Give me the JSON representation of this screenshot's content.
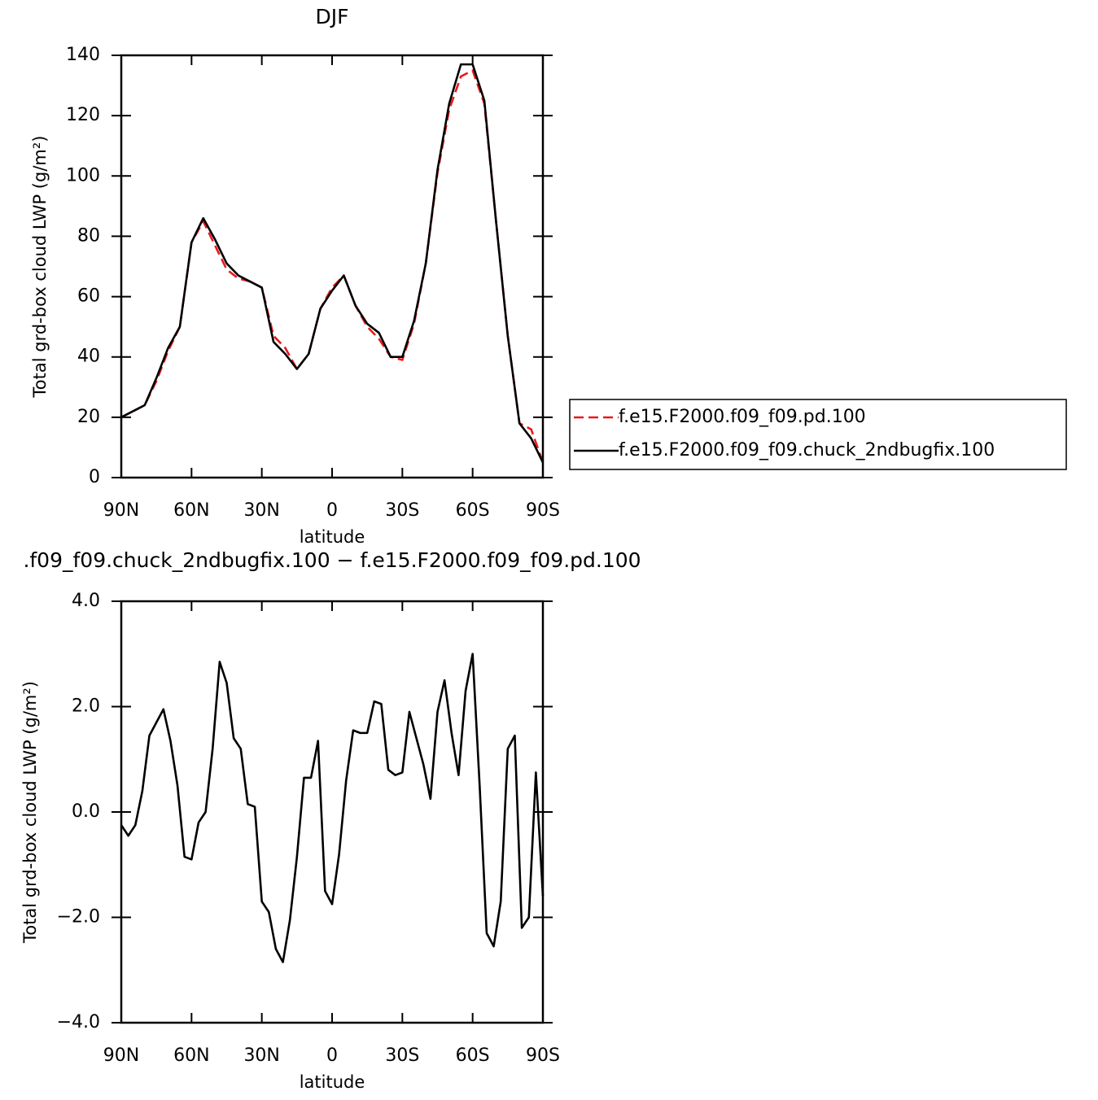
{
  "chart_data": [
    {
      "type": "line",
      "title": "DJF",
      "xlabel": "latitude",
      "ylabel": "Total grd-box cloud LWP (g/m²)",
      "x": [
        90,
        85,
        80,
        75,
        70,
        65,
        60,
        55,
        50,
        45,
        40,
        35,
        30,
        25,
        20,
        15,
        10,
        5,
        0,
        -5,
        -10,
        -15,
        -20,
        -25,
        -30,
        -35,
        -40,
        -45,
        -50,
        -55,
        -60,
        -65,
        -70,
        -75,
        -80,
        -85,
        -90
      ],
      "xlim": [
        90,
        -90
      ],
      "xticks": [
        {
          "value": 90,
          "label": "90N"
        },
        {
          "value": 60,
          "label": "60N"
        },
        {
          "value": 30,
          "label": "30N"
        },
        0,
        {
          "value": -30,
          "label": "30S"
        },
        {
          "value": -60,
          "label": "60S"
        },
        {
          "value": -90,
          "label": "90S"
        }
      ],
      "ylim": [
        0,
        140
      ],
      "yticks": [
        0,
        20,
        40,
        60,
        80,
        100,
        120,
        140
      ],
      "legend": "right",
      "series": [
        {
          "name": "f.e15.F2000.f09_f09.pd.100",
          "color": "#e8191c",
          "linestyle": "dashed",
          "values": [
            20,
            22,
            24,
            32,
            42,
            50,
            78,
            85,
            77,
            69,
            66,
            65,
            63,
            47,
            43,
            36,
            41,
            56,
            63,
            67,
            57,
            50,
            46,
            40,
            39,
            51,
            71,
            101,
            122,
            133,
            135,
            124,
            85,
            47,
            18,
            16,
            5
          ]
        },
        {
          "name": "f.e15.F2000.f09_f09.chuck_2ndbugfix.100",
          "color": "#000000",
          "linestyle": "solid",
          "values": [
            20,
            22,
            24,
            33,
            43,
            50,
            78,
            86,
            79,
            71,
            67,
            65,
            63,
            45,
            41,
            36,
            41,
            56,
            62,
            67,
            57,
            51,
            48,
            40,
            40,
            52,
            71,
            102,
            124,
            137,
            137,
            125,
            85,
            47,
            18,
            13,
            5
          ]
        }
      ]
    },
    {
      "type": "line",
      "title": ".f09_f09.chuck_2ndbugfix.100 − f.e15.F2000.f09_f09.pd.100",
      "xlabel": "latitude",
      "ylabel": "Total grd-box cloud LWP (g/m²)",
      "x": [
        90,
        87,
        84,
        81,
        78,
        75,
        72,
        69,
        66,
        63,
        60,
        57,
        54,
        51,
        48,
        45,
        42,
        39,
        36,
        33,
        30,
        27,
        24,
        21,
        18,
        15,
        12,
        9,
        6,
        3,
        0,
        -3,
        -6,
        -9,
        -12,
        -15,
        -18,
        -21,
        -24,
        -27,
        -30,
        -33,
        -36,
        -39,
        -42,
        -45,
        -48,
        -51,
        -54,
        -57,
        -60,
        -63,
        -66,
        -69,
        -72,
        -75,
        -78,
        -81,
        -84,
        -87,
        -90
      ],
      "xlim": [
        90,
        -90
      ],
      "xticks": [
        {
          "value": 90,
          "label": "90N"
        },
        {
          "value": 60,
          "label": "60N"
        },
        {
          "value": 30,
          "label": "30N"
        },
        0,
        {
          "value": -30,
          "label": "30S"
        },
        {
          "value": -60,
          "label": "60S"
        },
        {
          "value": -90,
          "label": "90S"
        }
      ],
      "ylim": [
        -4,
        4
      ],
      "yticks": [
        {
          "value": -4,
          "label": "−4.0"
        },
        {
          "value": -2,
          "label": "−2.0"
        },
        {
          "value": 0,
          "label": "0.0"
        },
        {
          "value": 2,
          "label": "2.0"
        },
        {
          "value": 4,
          "label": "4.0"
        }
      ],
      "series": [
        {
          "color": "#000000",
          "linestyle": "solid",
          "values": [
            -0.25,
            -0.45,
            -0.25,
            0.4,
            1.45,
            1.7,
            1.95,
            1.35,
            0.5,
            -0.85,
            -0.9,
            -0.2,
            0.0,
            1.2,
            2.85,
            2.45,
            1.4,
            1.2,
            0.15,
            0.1,
            -1.7,
            -1.9,
            -2.6,
            -2.85,
            -2.05,
            -0.85,
            0.65,
            0.65,
            1.35,
            -1.5,
            -1.75,
            -0.8,
            0.6,
            1.55,
            1.5,
            1.5,
            2.1,
            2.05,
            0.8,
            0.7,
            0.75,
            1.9,
            1.4,
            0.9,
            0.25,
            1.9,
            2.5,
            1.5,
            0.7,
            2.3,
            3.0,
            0.5,
            -2.3,
            -2.55,
            -1.7,
            1.2,
            1.45,
            -2.2,
            -2.0,
            0.75,
            -1.6
          ]
        }
      ]
    }
  ]
}
